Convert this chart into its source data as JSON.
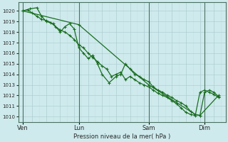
{
  "bg_color": "#ceeaec",
  "grid_color_major": "#b0cfd4",
  "grid_color_minor": "#c4e0e4",
  "line_color": "#1a6e20",
  "xlabel": "Pression niveau de la mer( hPa )",
  "ylim": [
    1009.5,
    1020.8
  ],
  "yticks": [
    1010,
    1011,
    1012,
    1013,
    1014,
    1015,
    1016,
    1017,
    1018,
    1019,
    1020
  ],
  "xtick_labels": [
    "Ven",
    "Lun",
    "Sam",
    "Dim"
  ],
  "xtick_positions": [
    0,
    48,
    108,
    156
  ],
  "vline_positions": [
    0,
    48,
    108,
    156
  ],
  "xlim": [
    -4,
    174
  ],
  "line1_x": [
    0,
    4,
    8,
    12,
    16,
    20,
    24,
    28,
    32,
    36,
    40,
    44,
    48,
    52,
    56,
    60,
    64,
    68,
    72,
    76,
    80,
    84,
    88,
    92,
    96,
    100,
    104,
    108,
    112,
    116,
    120,
    124,
    128,
    132,
    136,
    140,
    144,
    148,
    152,
    156,
    160,
    164,
    168
  ],
  "line1_y": [
    1020.0,
    1020.1,
    1019.8,
    1019.5,
    1019.2,
    1019.1,
    1018.9,
    1018.5,
    1018.2,
    1018.0,
    1017.7,
    1017.3,
    1016.8,
    1016.5,
    1016.0,
    1015.6,
    1015.2,
    1014.8,
    1014.5,
    1013.8,
    1014.0,
    1014.2,
    1013.5,
    1013.8,
    1013.5,
    1013.2,
    1013.0,
    1012.8,
    1012.5,
    1012.2,
    1012.0,
    1011.8,
    1011.5,
    1011.2,
    1010.8,
    1010.4,
    1010.2,
    1010.1,
    1012.3,
    1012.5,
    1012.3,
    1012.1,
    1011.8
  ],
  "line2_x": [
    0,
    6,
    12,
    16,
    20,
    26,
    32,
    36,
    40,
    44,
    48,
    52,
    56,
    60,
    64,
    68,
    74,
    80,
    84,
    88,
    92,
    96,
    100,
    104,
    108,
    112,
    116,
    120,
    124,
    128,
    132,
    136,
    140,
    144,
    148,
    152,
    156,
    160,
    164,
    168
  ],
  "line2_y": [
    1020.0,
    1020.2,
    1020.3,
    1019.5,
    1019.0,
    1018.8,
    1018.0,
    1018.5,
    1018.8,
    1018.3,
    1016.5,
    1016.0,
    1015.5,
    1015.8,
    1015.0,
    1014.0,
    1013.2,
    1013.8,
    1014.0,
    1015.0,
    1014.5,
    1014.0,
    1013.8,
    1013.5,
    1013.3,
    1012.8,
    1012.5,
    1012.3,
    1012.0,
    1011.8,
    1011.5,
    1011.3,
    1011.0,
    1010.5,
    1010.2,
    1010.1,
    1012.3,
    1012.5,
    1012.3,
    1011.9
  ],
  "line3_x": [
    0,
    48,
    108,
    148,
    152,
    168
  ],
  "line3_y": [
    1020.0,
    1018.7,
    1013.0,
    1010.2,
    1010.1,
    1012.0
  ],
  "marker_x1": [
    4,
    14,
    22,
    28,
    36,
    44,
    52,
    60,
    68,
    74,
    82,
    90,
    98,
    104,
    112,
    120,
    128,
    136,
    144,
    150,
    156,
    164
  ],
  "marker_y1": [
    1020.1,
    1020.2,
    1019.0,
    1018.5,
    1017.8,
    1016.5,
    1016.0,
    1015.5,
    1014.0,
    1013.2,
    1013.8,
    1014.8,
    1013.5,
    1013.2,
    1012.5,
    1012.0,
    1011.5,
    1011.0,
    1010.2,
    1010.1,
    1012.5,
    1012.0
  ],
  "marker_x2": [
    6,
    14,
    22,
    30,
    38,
    46,
    54,
    62,
    70,
    78,
    86,
    94,
    102,
    110,
    118,
    126,
    134,
    142,
    148,
    158,
    166
  ],
  "marker_y2": [
    1019.8,
    1020.3,
    1018.8,
    1018.2,
    1018.5,
    1016.0,
    1015.8,
    1015.2,
    1013.5,
    1013.8,
    1015.0,
    1013.7,
    1013.5,
    1012.8,
    1012.3,
    1012.0,
    1011.5,
    1010.5,
    1010.2,
    1012.3,
    1011.8
  ]
}
